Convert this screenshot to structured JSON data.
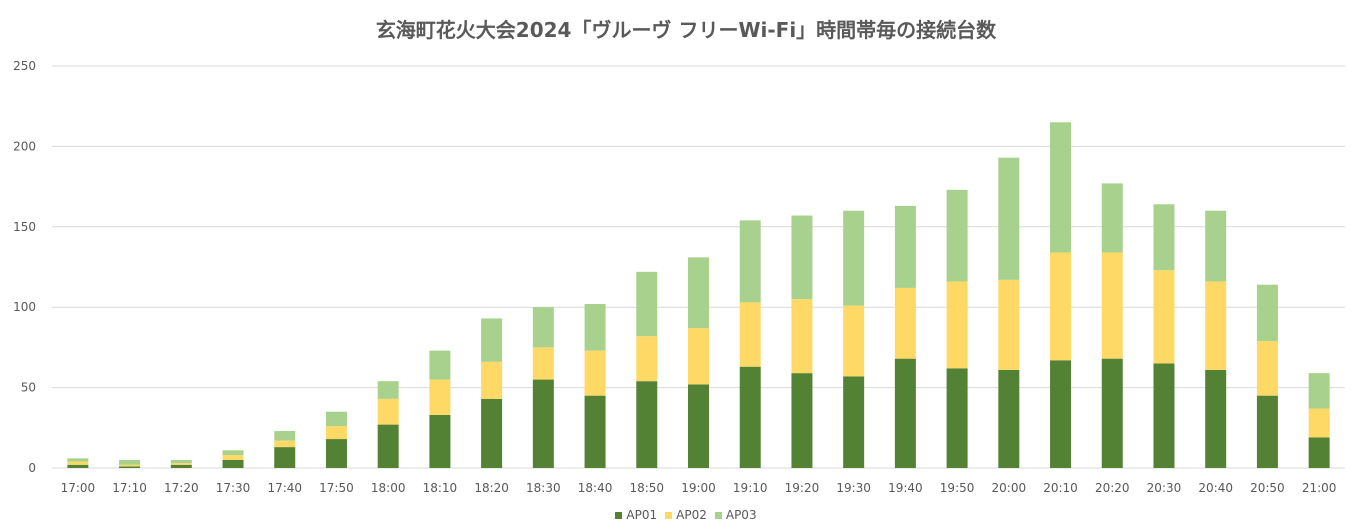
{
  "chart_data": {
    "type": "bar",
    "stacked": true,
    "title": "玄海町花火大会2024「ヴルーヴ フリーWi-Fi」時間帯毎の接続台数",
    "xlabel": "",
    "ylabel": "",
    "ylim": [
      0,
      250
    ],
    "yticks": [
      0,
      50,
      100,
      150,
      200,
      250
    ],
    "grid": true,
    "legend_position": "bottom",
    "categories": [
      "17:00",
      "17:10",
      "17:20",
      "17:30",
      "17:40",
      "17:50",
      "18:00",
      "18:10",
      "18:20",
      "18:30",
      "18:40",
      "18:50",
      "19:00",
      "19:10",
      "19:20",
      "19:30",
      "19:40",
      "19:50",
      "20:00",
      "20:10",
      "20:20",
      "20:30",
      "20:40",
      "20:50",
      "21:00"
    ],
    "series": [
      {
        "name": "AP01",
        "color": "#548235",
        "values": [
          2,
          1,
          2,
          5,
          13,
          18,
          27,
          33,
          43,
          55,
          45,
          54,
          52,
          63,
          59,
          57,
          68,
          62,
          61,
          67,
          68,
          65,
          61,
          45,
          19
        ]
      },
      {
        "name": "AP02",
        "color": "#FFD966",
        "values": [
          2,
          1,
          1,
          3,
          4,
          8,
          16,
          22,
          23,
          20,
          28,
          28,
          35,
          40,
          46,
          44,
          44,
          54,
          56,
          67,
          66,
          58,
          55,
          34,
          18
        ]
      },
      {
        "name": "AP03",
        "color": "#A9D18E",
        "values": [
          2,
          3,
          2,
          3,
          6,
          9,
          11,
          18,
          27,
          25,
          29,
          40,
          44,
          51,
          52,
          59,
          51,
          57,
          76,
          81,
          43,
          41,
          44,
          35,
          22
        ]
      }
    ]
  }
}
